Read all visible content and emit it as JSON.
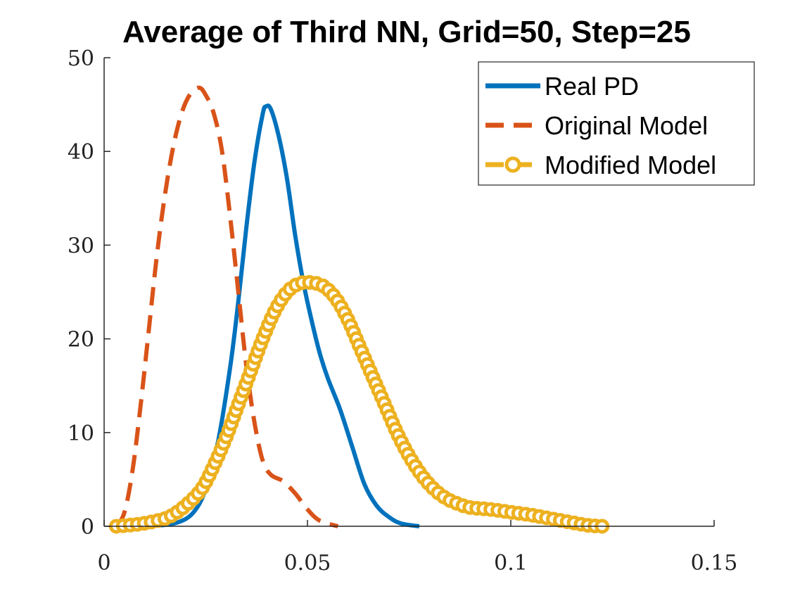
{
  "chart_data": {
    "type": "line",
    "title": "Average of Third NN, Grid=50, Step=25",
    "xlabel": "",
    "ylabel": "",
    "xlim": [
      0,
      0.15
    ],
    "ylim": [
      0,
      50
    ],
    "xticks": [
      0,
      0.05,
      0.1,
      0.15
    ],
    "xtick_labels": [
      "0",
      "0.05",
      "0.1",
      "0.15"
    ],
    "yticks": [
      0,
      10,
      20,
      30,
      40,
      50
    ],
    "ytick_labels": [
      "0",
      "10",
      "20",
      "30",
      "40",
      "50"
    ],
    "grid": false,
    "legend_position": "top-right",
    "series": [
      {
        "name": "Real PD",
        "color": "#0072BD",
        "style": "solid",
        "marker": "none",
        "points": [
          [
            0.0035,
            0.0
          ],
          [
            0.012,
            0.05
          ],
          [
            0.018,
            0.4
          ],
          [
            0.022,
            1.5
          ],
          [
            0.025,
            4.0
          ],
          [
            0.028,
            9.0
          ],
          [
            0.031,
            17.0
          ],
          [
            0.033,
            24.0
          ],
          [
            0.035,
            32.0
          ],
          [
            0.037,
            39.0
          ],
          [
            0.039,
            44.0
          ],
          [
            0.0398,
            44.8
          ],
          [
            0.041,
            44.5
          ],
          [
            0.043,
            41.5
          ],
          [
            0.045,
            37.0
          ],
          [
            0.047,
            31.0
          ],
          [
            0.049,
            26.0
          ],
          [
            0.051,
            22.0
          ],
          [
            0.053,
            18.5
          ],
          [
            0.055,
            15.8
          ],
          [
            0.058,
            12.5
          ],
          [
            0.061,
            8.5
          ],
          [
            0.064,
            4.5
          ],
          [
            0.067,
            2.2
          ],
          [
            0.07,
            1.0
          ],
          [
            0.073,
            0.3
          ],
          [
            0.0775,
            0.0
          ]
        ]
      },
      {
        "name": "Original Model",
        "color": "#D95319",
        "style": "dashed",
        "marker": "none",
        "points": [
          [
            0.003,
            0.0
          ],
          [
            0.005,
            1.5
          ],
          [
            0.007,
            6.0
          ],
          [
            0.009,
            13.0
          ],
          [
            0.011,
            21.0
          ],
          [
            0.013,
            29.0
          ],
          [
            0.015,
            35.5
          ],
          [
            0.017,
            40.5
          ],
          [
            0.019,
            44.0
          ],
          [
            0.021,
            46.0
          ],
          [
            0.0233,
            46.8
          ],
          [
            0.025,
            46.0
          ],
          [
            0.027,
            44.0
          ],
          [
            0.029,
            40.0
          ],
          [
            0.031,
            33.0
          ],
          [
            0.033,
            25.0
          ],
          [
            0.035,
            17.0
          ],
          [
            0.037,
            11.0
          ],
          [
            0.039,
            7.0
          ],
          [
            0.041,
            5.5
          ],
          [
            0.044,
            4.8
          ],
          [
            0.047,
            3.5
          ],
          [
            0.05,
            1.8
          ],
          [
            0.053,
            0.6
          ],
          [
            0.0575,
            0.0
          ]
        ]
      },
      {
        "name": "Modified Model",
        "color": "#EDB120",
        "style": "dashed",
        "marker": "circle",
        "points": [
          [
            0.003,
            0.0
          ],
          [
            0.008,
            0.2
          ],
          [
            0.012,
            0.5
          ],
          [
            0.016,
            1.0
          ],
          [
            0.02,
            2.2
          ],
          [
            0.024,
            4.0
          ],
          [
            0.027,
            6.5
          ],
          [
            0.03,
            9.5
          ],
          [
            0.033,
            13.0
          ],
          [
            0.036,
            16.5
          ],
          [
            0.039,
            20.0
          ],
          [
            0.042,
            23.0
          ],
          [
            0.045,
            25.0
          ],
          [
            0.048,
            25.9
          ],
          [
            0.051,
            26.0
          ],
          [
            0.054,
            25.6
          ],
          [
            0.057,
            24.3
          ],
          [
            0.06,
            22.0
          ],
          [
            0.063,
            19.0
          ],
          [
            0.066,
            16.0
          ],
          [
            0.069,
            13.0
          ],
          [
            0.072,
            10.0
          ],
          [
            0.075,
            7.5
          ],
          [
            0.078,
            5.5
          ],
          [
            0.081,
            4.0
          ],
          [
            0.084,
            3.0
          ],
          [
            0.087,
            2.4
          ],
          [
            0.09,
            2.0
          ],
          [
            0.095,
            1.8
          ],
          [
            0.1,
            1.5
          ],
          [
            0.105,
            1.2
          ],
          [
            0.11,
            0.8
          ],
          [
            0.115,
            0.4
          ],
          [
            0.119,
            0.1
          ],
          [
            0.1225,
            0.0
          ]
        ]
      }
    ]
  }
}
